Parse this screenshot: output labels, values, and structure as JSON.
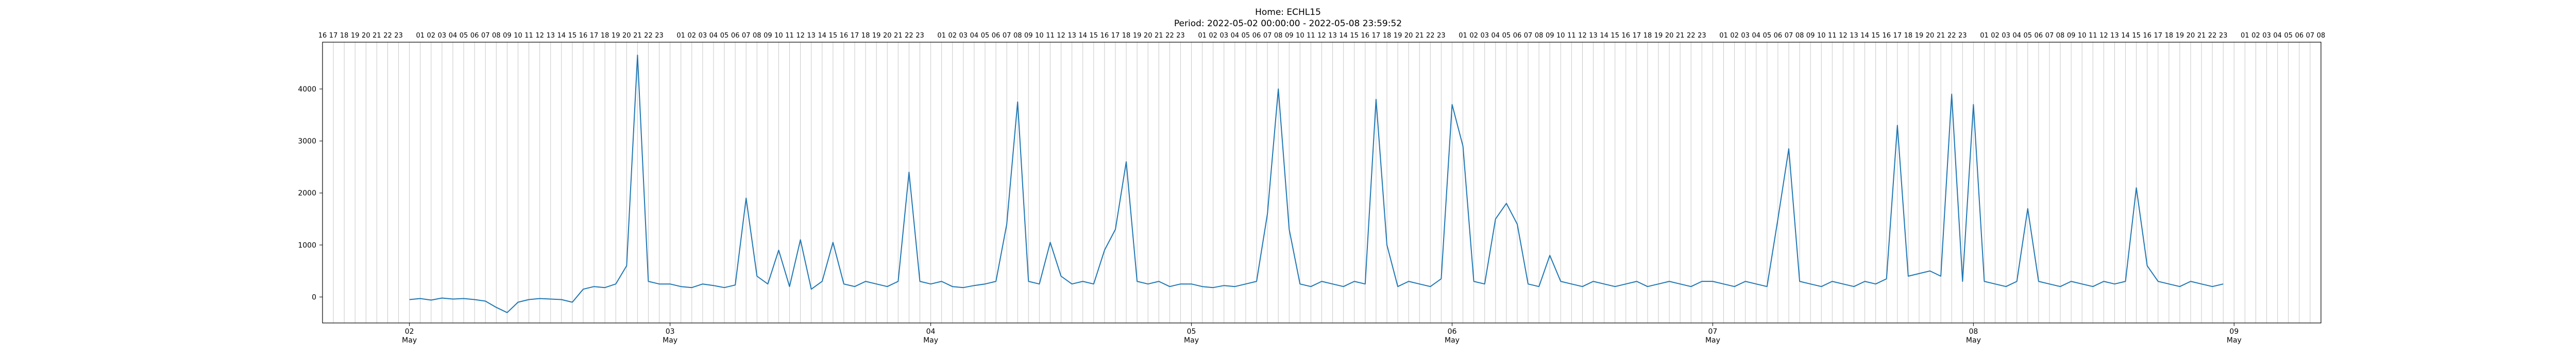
{
  "chart_data": {
    "type": "line",
    "title_line_1": "Home: ECHL15",
    "title_line_2": "Period: 2022-05-02 00:00:00 - 2022-05-08 23:59:52",
    "xlabel": "",
    "ylabel": "",
    "x_start": "2022-05-01 16:00",
    "x_end": "2022-05-09 08:00",
    "ylim": [
      -500,
      4900
    ],
    "yticks": [
      0,
      1000,
      2000,
      3000,
      4000
    ],
    "vertical_gridlines": "hourly",
    "day_ticks": [
      {
        "x": "2022-05-02",
        "day": "02",
        "month": "May"
      },
      {
        "x": "2022-05-03",
        "day": "03",
        "month": "May"
      },
      {
        "x": "2022-05-04",
        "day": "04",
        "month": "May"
      },
      {
        "x": "2022-05-05",
        "day": "05",
        "month": "May"
      },
      {
        "x": "2022-05-06",
        "day": "06",
        "month": "May"
      },
      {
        "x": "2022-05-07",
        "day": "07",
        "month": "May"
      },
      {
        "x": "2022-05-08",
        "day": "08",
        "month": "May"
      },
      {
        "x": "2022-05-09",
        "day": "09",
        "month": "May"
      }
    ],
    "hour_labels_top": "two-digit hour of each hourly gridline; midnight unlabeled",
    "line_color": "#1f77b4",
    "series": [
      {
        "x": [
          "2022-05-02 00:00",
          "2022-05-02 01:00",
          "2022-05-02 02:00",
          "2022-05-02 03:00",
          "2022-05-02 04:00",
          "2022-05-02 05:00",
          "2022-05-02 06:00",
          "2022-05-02 07:00",
          "2022-05-02 08:00",
          "2022-05-02 09:00",
          "2022-05-02 10:00",
          "2022-05-02 11:00",
          "2022-05-02 12:00",
          "2022-05-02 13:00",
          "2022-05-02 14:00",
          "2022-05-02 15:00",
          "2022-05-02 16:00",
          "2022-05-02 17:00",
          "2022-05-02 18:00",
          "2022-05-02 19:00",
          "2022-05-02 20:00",
          "2022-05-02 21:00",
          "2022-05-02 22:00",
          "2022-05-02 23:00",
          "2022-05-03 00:00",
          "2022-05-03 01:00",
          "2022-05-03 02:00",
          "2022-05-03 03:00",
          "2022-05-03 04:00",
          "2022-05-03 05:00",
          "2022-05-03 06:00",
          "2022-05-03 07:00",
          "2022-05-03 08:00",
          "2022-05-03 09:00",
          "2022-05-03 10:00",
          "2022-05-03 11:00",
          "2022-05-03 12:00",
          "2022-05-03 13:00",
          "2022-05-03 14:00",
          "2022-05-03 15:00",
          "2022-05-03 16:00",
          "2022-05-03 17:00",
          "2022-05-03 18:00",
          "2022-05-03 19:00",
          "2022-05-03 20:00",
          "2022-05-03 21:00",
          "2022-05-03 22:00",
          "2022-05-03 23:00",
          "2022-05-04 00:00",
          "2022-05-04 01:00",
          "2022-05-04 02:00",
          "2022-05-04 03:00",
          "2022-05-04 04:00",
          "2022-05-04 05:00",
          "2022-05-04 06:00",
          "2022-05-04 07:00",
          "2022-05-04 08:00",
          "2022-05-04 09:00",
          "2022-05-04 10:00",
          "2022-05-04 11:00",
          "2022-05-04 12:00",
          "2022-05-04 13:00",
          "2022-05-04 14:00",
          "2022-05-04 15:00",
          "2022-05-04 16:00",
          "2022-05-04 17:00",
          "2022-05-04 18:00",
          "2022-05-04 19:00",
          "2022-05-04 20:00",
          "2022-05-04 21:00",
          "2022-05-04 22:00",
          "2022-05-04 23:00",
          "2022-05-05 00:00",
          "2022-05-05 01:00",
          "2022-05-05 02:00",
          "2022-05-05 03:00",
          "2022-05-05 04:00",
          "2022-05-05 05:00",
          "2022-05-05 06:00",
          "2022-05-05 07:00",
          "2022-05-05 08:00",
          "2022-05-05 09:00",
          "2022-05-05 10:00",
          "2022-05-05 11:00",
          "2022-05-05 12:00",
          "2022-05-05 13:00",
          "2022-05-05 14:00",
          "2022-05-05 15:00",
          "2022-05-05 16:00",
          "2022-05-05 17:00",
          "2022-05-05 18:00",
          "2022-05-05 19:00",
          "2022-05-05 20:00",
          "2022-05-05 21:00",
          "2022-05-05 22:00",
          "2022-05-05 23:00",
          "2022-05-06 00:00",
          "2022-05-06 01:00",
          "2022-05-06 02:00",
          "2022-05-06 03:00",
          "2022-05-06 04:00",
          "2022-05-06 05:00",
          "2022-05-06 06:00",
          "2022-05-06 07:00",
          "2022-05-06 08:00",
          "2022-05-06 09:00",
          "2022-05-06 10:00",
          "2022-05-06 11:00",
          "2022-05-06 12:00",
          "2022-05-06 13:00",
          "2022-05-06 14:00",
          "2022-05-06 15:00",
          "2022-05-06 16:00",
          "2022-05-06 17:00",
          "2022-05-06 18:00",
          "2022-05-06 19:00",
          "2022-05-06 20:00",
          "2022-05-06 21:00",
          "2022-05-06 22:00",
          "2022-05-06 23:00",
          "2022-05-07 00:00",
          "2022-05-07 01:00",
          "2022-05-07 02:00",
          "2022-05-07 03:00",
          "2022-05-07 04:00",
          "2022-05-07 05:00",
          "2022-05-07 06:00",
          "2022-05-07 07:00",
          "2022-05-07 08:00",
          "2022-05-07 09:00",
          "2022-05-07 10:00",
          "2022-05-07 11:00",
          "2022-05-07 12:00",
          "2022-05-07 13:00",
          "2022-05-07 14:00",
          "2022-05-07 15:00",
          "2022-05-07 16:00",
          "2022-05-07 17:00",
          "2022-05-07 18:00",
          "2022-05-07 19:00",
          "2022-05-07 20:00",
          "2022-05-07 21:00",
          "2022-05-07 22:00",
          "2022-05-07 23:00",
          "2022-05-08 00:00",
          "2022-05-08 01:00",
          "2022-05-08 02:00",
          "2022-05-08 03:00",
          "2022-05-08 04:00",
          "2022-05-08 05:00",
          "2022-05-08 06:00",
          "2022-05-08 07:00",
          "2022-05-08 08:00",
          "2022-05-08 09:00",
          "2022-05-08 10:00",
          "2022-05-08 11:00",
          "2022-05-08 12:00",
          "2022-05-08 13:00",
          "2022-05-08 14:00",
          "2022-05-08 15:00",
          "2022-05-08 16:00",
          "2022-05-08 17:00",
          "2022-05-08 18:00",
          "2022-05-08 19:00",
          "2022-05-08 20:00",
          "2022-05-08 21:00",
          "2022-05-08 22:00",
          "2022-05-08 23:00"
        ],
        "y": [
          -50,
          -30,
          -60,
          -20,
          -40,
          -30,
          -50,
          -80,
          -200,
          -300,
          -100,
          -50,
          -30,
          -40,
          -50,
          -100,
          150,
          200,
          180,
          250,
          600,
          4650,
          300,
          250,
          250,
          200,
          180,
          250,
          220,
          180,
          230,
          1900,
          400,
          250,
          900,
          200,
          1100,
          150,
          300,
          1050,
          250,
          200,
          300,
          250,
          200,
          300,
          2400,
          300,
          250,
          300,
          200,
          180,
          220,
          250,
          300,
          1400,
          3750,
          300,
          250,
          1050,
          400,
          250,
          300,
          250,
          900,
          1300,
          2600,
          300,
          250,
          300,
          200,
          250,
          250,
          200,
          180,
          220,
          200,
          250,
          300,
          1600,
          4000,
          1300,
          250,
          200,
          300,
          250,
          200,
          300,
          250,
          3800,
          1000,
          200,
          300,
          250,
          200,
          350,
          3700,
          2900,
          300,
          250,
          1500,
          1800,
          1400,
          250,
          200,
          800,
          300,
          250,
          200,
          300,
          250,
          200,
          250,
          300,
          200,
          250,
          300,
          250,
          200,
          300,
          300,
          250,
          200,
          300,
          250,
          200,
          1500,
          2850,
          300,
          250,
          200,
          300,
          250,
          200,
          300,
          250,
          350,
          3300,
          400,
          450,
          500,
          400,
          3900,
          300,
          3700,
          300,
          250,
          200,
          300,
          1700,
          300,
          250,
          200,
          300,
          250,
          200,
          300,
          250,
          300,
          2100,
          600,
          300,
          250,
          200,
          300,
          250,
          200,
          250
        ]
      }
    ]
  }
}
